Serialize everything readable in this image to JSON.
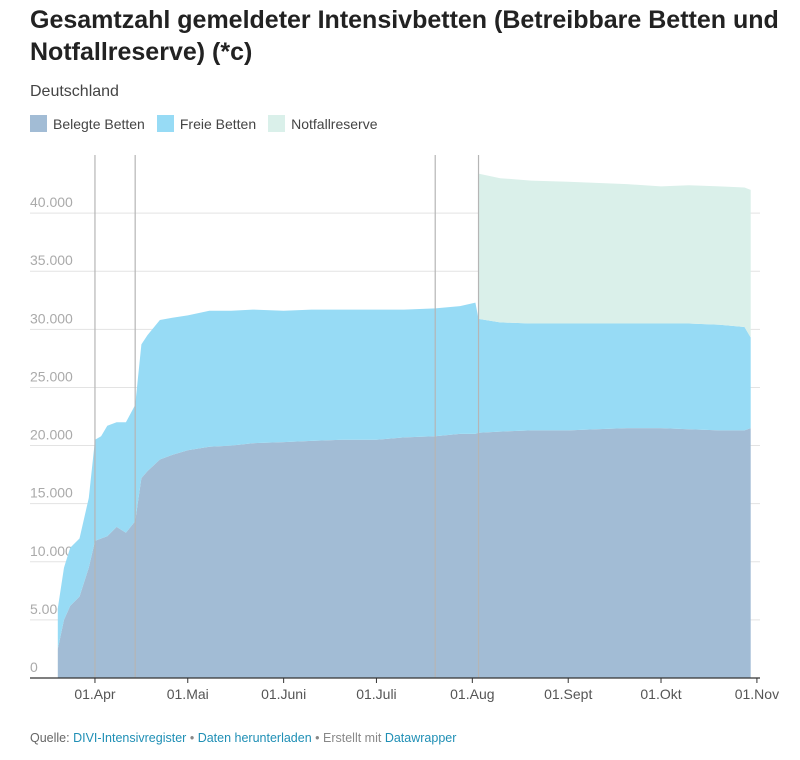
{
  "header": {
    "title": "Gesamtzahl gemeldeter Intensivbetten (Betreibbare Betten und Notfallreserve) (*c)",
    "subtitle": "Deutschland"
  },
  "legend": [
    {
      "label": "Belegte Betten",
      "color": "#a2bcd5"
    },
    {
      "label": "Freie Betten",
      "color": "#97dbf5"
    },
    {
      "label": "Notfallreserve",
      "color": "#daf0ea"
    }
  ],
  "footer": {
    "prefix": "Quelle:",
    "link1": "DIVI-Intensivregister",
    "sep1": "•",
    "link2": "Daten herunterladen",
    "sep2": "• Erstellt mit",
    "link3": "Datawrapper"
  },
  "chart_data": {
    "type": "area",
    "stacked": true,
    "x_type": "date",
    "xlim": [
      "2020-03-11",
      "2020-11-02"
    ],
    "ylim": [
      0,
      45000
    ],
    "y_ticks": [
      0,
      5000,
      10000,
      15000,
      20000,
      25000,
      30000,
      35000,
      40000
    ],
    "y_tick_labels": [
      "0",
      "5.000",
      "10.000",
      "15.000",
      "20.000",
      "25.000",
      "30.000",
      "35.000",
      "40.000"
    ],
    "x_ticks": [
      "2020-04-01",
      "2020-05-01",
      "2020-06-01",
      "2020-07-01",
      "2020-08-01",
      "2020-09-01",
      "2020-10-01",
      "2020-11-01"
    ],
    "x_tick_labels": [
      "01.Apr",
      "01.Mai",
      "01.Juni",
      "01.Juli",
      "01.Aug",
      "01.Sept",
      "01.Okt",
      "01.Nov"
    ],
    "annotation_lines": [
      "2020-04-01",
      "2020-04-14",
      "2020-07-20",
      "2020-08-03"
    ],
    "grid": true,
    "x": [
      "2020-03-20",
      "2020-03-22",
      "2020-03-24",
      "2020-03-27",
      "2020-03-30",
      "2020-04-01",
      "2020-04-03",
      "2020-04-05",
      "2020-04-08",
      "2020-04-11",
      "2020-04-14",
      "2020-04-16",
      "2020-04-18",
      "2020-04-22",
      "2020-04-26",
      "2020-05-01",
      "2020-05-08",
      "2020-05-15",
      "2020-05-22",
      "2020-06-01",
      "2020-06-10",
      "2020-06-20",
      "2020-07-01",
      "2020-07-10",
      "2020-07-20",
      "2020-07-28",
      "2020-08-02",
      "2020-08-03",
      "2020-08-10",
      "2020-08-20",
      "2020-09-01",
      "2020-09-10",
      "2020-09-20",
      "2020-10-01",
      "2020-10-10",
      "2020-10-20",
      "2020-10-28",
      "2020-10-30"
    ],
    "series": [
      {
        "name": "Belegte Betten",
        "color": "#a2bcd5",
        "values": [
          2500,
          5000,
          6200,
          7000,
          9500,
          11800,
          12000,
          12200,
          13000,
          12500,
          13500,
          17200,
          17800,
          18800,
          19200,
          19600,
          19900,
          20000,
          20200,
          20300,
          20400,
          20500,
          20500,
          20700,
          20800,
          21000,
          21000,
          21100,
          21200,
          21300,
          21300,
          21400,
          21500,
          21500,
          21400,
          21300,
          21300,
          21500
        ]
      },
      {
        "name": "Freie Betten",
        "color": "#97dbf5",
        "values": [
          3500,
          4500,
          5000,
          5000,
          6000,
          8700,
          8800,
          9500,
          9000,
          9500,
          10000,
          11500,
          11700,
          12000,
          11800,
          11600,
          11700,
          11600,
          11500,
          11300,
          11300,
          11200,
          11200,
          11000,
          11000,
          11000,
          11300,
          9800,
          9400,
          9200,
          9200,
          9100,
          9000,
          9000,
          9100,
          9100,
          8900,
          7800
        ]
      },
      {
        "name": "Notfallreserve",
        "color": "#daf0ea",
        "values": [
          0,
          0,
          0,
          0,
          0,
          0,
          0,
          0,
          0,
          0,
          0,
          0,
          0,
          0,
          0,
          0,
          0,
          0,
          0,
          0,
          0,
          0,
          0,
          0,
          0,
          0,
          0,
          12500,
          12400,
          12300,
          12200,
          12100,
          12000,
          11800,
          11900,
          11900,
          12000,
          12700
        ]
      }
    ]
  }
}
